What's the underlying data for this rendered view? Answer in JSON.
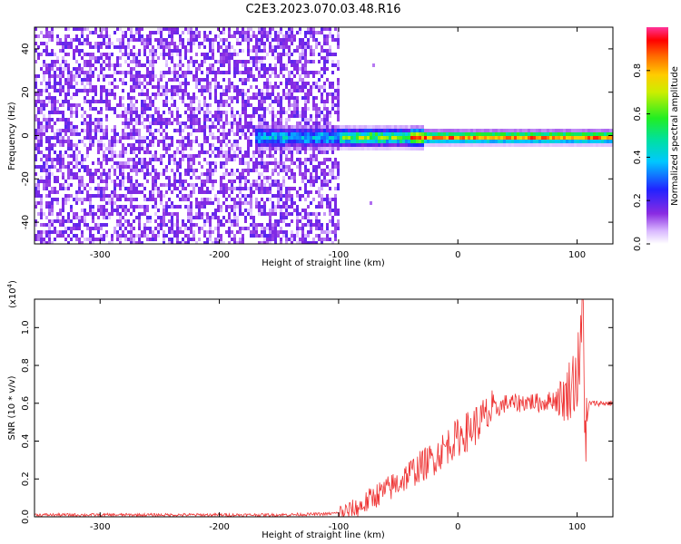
{
  "title": "C2E3.2023.070.03.48.R16",
  "chart_data": [
    {
      "type": "heatmap",
      "xlabel": "Height of straight line (km)",
      "ylabel": "Frequency (Hz)",
      "xlim": [
        -355,
        130
      ],
      "ylim": [
        -50,
        50
      ],
      "xticks": [
        -300,
        -200,
        -100,
        0,
        100
      ],
      "yticks": [
        -40,
        -20,
        0,
        20,
        40
      ],
      "xtick_labels": [
        "-300",
        "-200",
        "-100",
        "0",
        "100"
      ],
      "ytick_labels": [
        "-40",
        "-20",
        "0",
        "20",
        "40"
      ],
      "colorbar": {
        "label": "Normalized spectral amplitude",
        "range": [
          0,
          1
        ],
        "ticks": [
          0.0,
          0.2,
          0.4,
          0.6,
          0.8
        ],
        "tick_labels": [
          "0.0",
          "0.2",
          "0.4",
          "0.6",
          "0.8"
        ],
        "colormap": "rainbow (white-purple-blue-cyan-green-yellow-orange-red-magenta)"
      },
      "regions": [
        {
          "x": [
            -355,
            -100
          ],
          "description": "broadband noise spanning full frequency range, amplitude 0.05-0.2"
        },
        {
          "x": [
            -170,
            -100
          ],
          "freq_center": 0,
          "description": "emerging signal near 0 Hz, amplitude 0.3-0.5"
        },
        {
          "x": [
            -100,
            130
          ],
          "freq_center": 0,
          "description": "narrow carrier line near 0 Hz, amplitude up to ~0.95"
        }
      ]
    },
    {
      "type": "line",
      "xlabel": "Height of straight line (km)",
      "ylabel": "SNR (10 * v/v)",
      "y_multiplier": "(x10",
      "y_multiplier_exp": "4",
      "y_multiplier_close": ")",
      "xlim": [
        -355,
        130
      ],
      "ylim": [
        0,
        1.15
      ],
      "xticks": [
        -300,
        -200,
        -100,
        0,
        100
      ],
      "yticks": [
        0.0,
        0.2,
        0.4,
        0.6,
        0.8,
        1.0
      ],
      "xtick_labels": [
        "-300",
        "-200",
        "-100",
        "0",
        "100"
      ],
      "ytick_labels": [
        "0.0",
        "0.2",
        "0.4",
        "0.6",
        "0.8",
        "1.0"
      ],
      "color": "#ee3333",
      "series": [
        {
          "x": [
            -355,
            -300,
            -250,
            -200,
            -150,
            -110,
            -100,
            -90,
            -80,
            -70,
            -60,
            -50,
            -40,
            -30,
            -20,
            -10,
            0,
            10,
            20,
            30,
            40,
            50,
            60,
            70,
            80,
            90,
            95,
            100,
            103,
            105,
            107,
            110,
            120,
            130
          ],
          "values": [
            0.01,
            0.01,
            0.01,
            0.01,
            0.01,
            0.015,
            0.02,
            0.03,
            0.06,
            0.11,
            0.14,
            0.18,
            0.23,
            0.27,
            0.31,
            0.37,
            0.42,
            0.46,
            0.51,
            0.56,
            0.6,
            0.6,
            0.61,
            0.6,
            0.62,
            0.63,
            0.7,
            0.75,
            0.85,
            1.15,
            0.4,
            0.6,
            0.6,
            0.6
          ]
        }
      ]
    }
  ]
}
